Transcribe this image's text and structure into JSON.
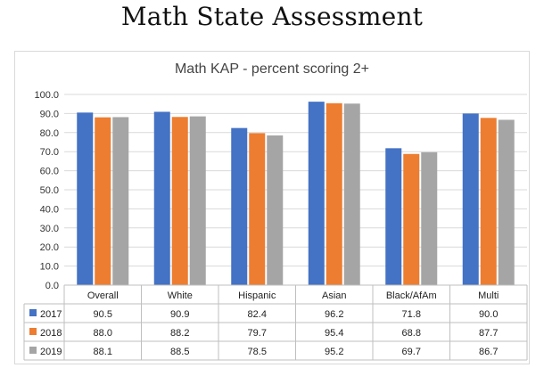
{
  "page": {
    "title": "Math State Assessment"
  },
  "colors": {
    "2017": "#4472C4",
    "2018": "#ED7D31",
    "2019": "#A5A5A5",
    "grid": "#d9d9d9",
    "border": "#bfbfbf"
  },
  "chart_data": {
    "type": "bar",
    "title": "Math KAP - percent scoring 2+",
    "categories": [
      "Overall",
      "White",
      "Hispanic",
      "Asian",
      "Black/AfAm",
      "Multi"
    ],
    "series": [
      {
        "name": "2017",
        "values": [
          90.5,
          90.9,
          82.4,
          96.2,
          71.8,
          90.0
        ],
        "labels": [
          "90.5",
          "90.9",
          "82.4",
          "96.2",
          "71.8",
          "90.0"
        ]
      },
      {
        "name": "2018",
        "values": [
          88.0,
          88.2,
          79.7,
          95.4,
          68.8,
          87.7
        ],
        "labels": [
          "88.0",
          "88.2",
          "79.7",
          "95.4",
          "68.8",
          "87.7"
        ]
      },
      {
        "name": "2019",
        "values": [
          88.1,
          88.5,
          78.5,
          95.2,
          69.7,
          86.7
        ],
        "labels": [
          "88.1",
          "88.5",
          "78.5",
          "95.2",
          "69.7",
          "86.7"
        ]
      }
    ],
    "ylim": [
      0,
      100
    ],
    "yticks": [
      0,
      10,
      20,
      30,
      40,
      50,
      60,
      70,
      80,
      90,
      100
    ],
    "ytick_labels": [
      "0.0",
      "10.0",
      "20.0",
      "30.0",
      "40.0",
      "50.0",
      "60.0",
      "70.0",
      "80.0",
      "90.0",
      "100.0"
    ],
    "grid": true,
    "legend": "data-table"
  }
}
